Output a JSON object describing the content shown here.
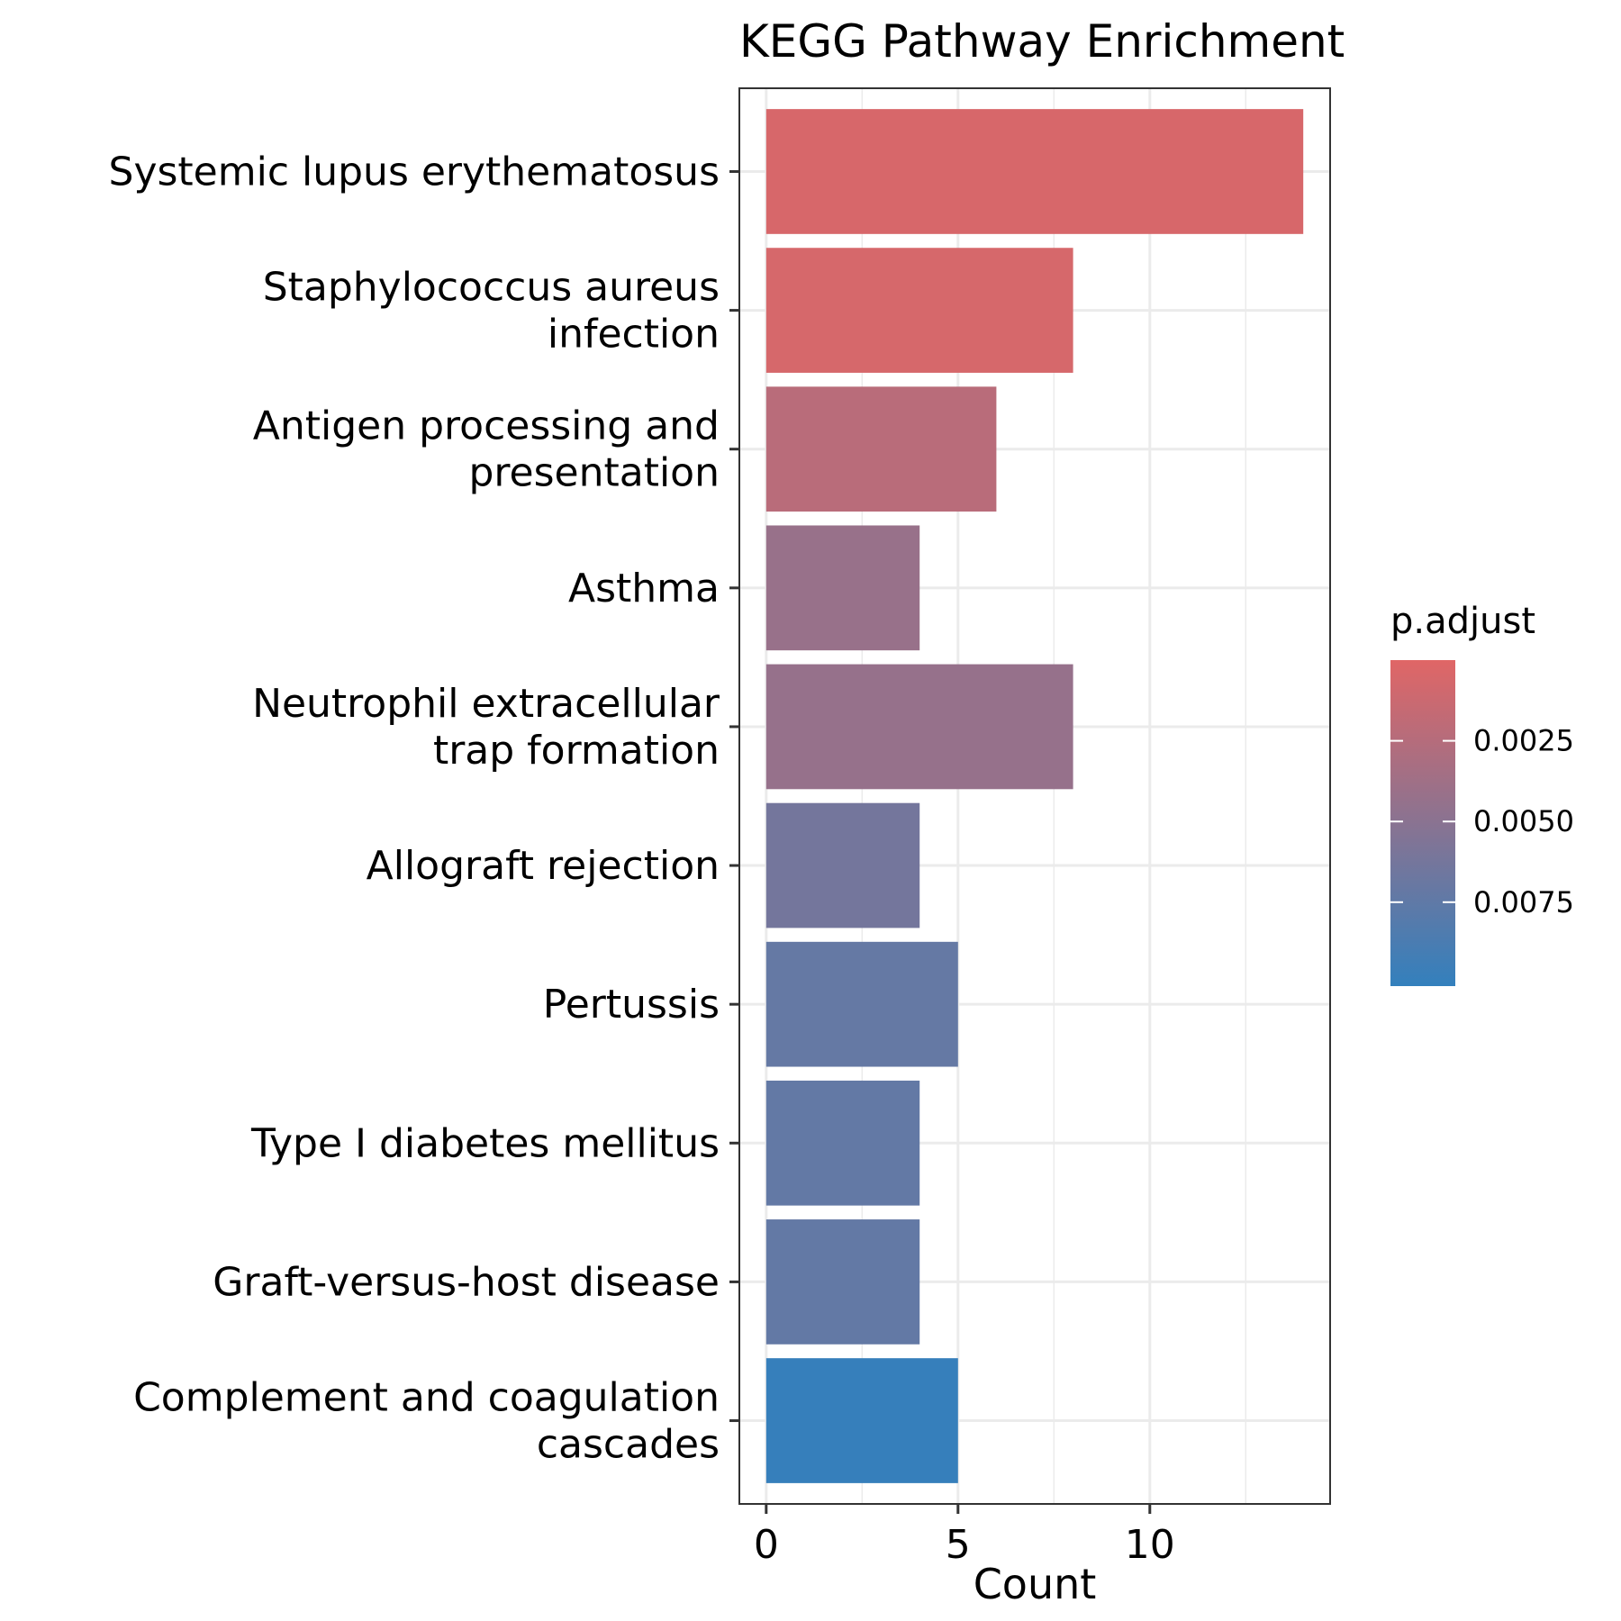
{
  "chart_data": {
    "type": "bar",
    "orientation": "horizontal",
    "title": "KEGG Pathway Enrichment",
    "xlabel": "Count",
    "ylabel": "",
    "xlim": [
      -0.7,
      14.7
    ],
    "xticks": [
      0,
      5,
      10
    ],
    "grid": true,
    "categories": [
      [
        "Systemic lupus erythematosus"
      ],
      [
        "Staphylococcus aureus",
        "infection"
      ],
      [
        "Antigen processing and",
        "presentation"
      ],
      [
        "Asthma"
      ],
      [
        "Neutrophil extracellular",
        "trap formation"
      ],
      [
        "Allograft rejection"
      ],
      [
        "Pertussis"
      ],
      [
        "Type I diabetes mellitus"
      ],
      [
        "Graft-versus-host disease"
      ],
      [
        "Complement and coagulation",
        "cascades"
      ]
    ],
    "values": [
      14,
      8,
      6,
      4,
      8,
      4,
      5,
      4,
      4,
      5
    ],
    "p_adjust": [
      0.00052,
      0.0006,
      0.0023,
      0.0042,
      0.0043,
      0.0063,
      0.0072,
      0.0073,
      0.0073,
      0.0099
    ],
    "legend": {
      "title": "p.adjust",
      "position": "right",
      "range": [
        0.0,
        0.0101
      ],
      "ticks": [
        0.0025,
        0.005,
        0.0075
      ],
      "tick_labels": [
        "0.0025",
        "0.0050",
        "0.0075"
      ],
      "color_low_p": "#E06666",
      "color_high_p": "#3380BD"
    }
  }
}
